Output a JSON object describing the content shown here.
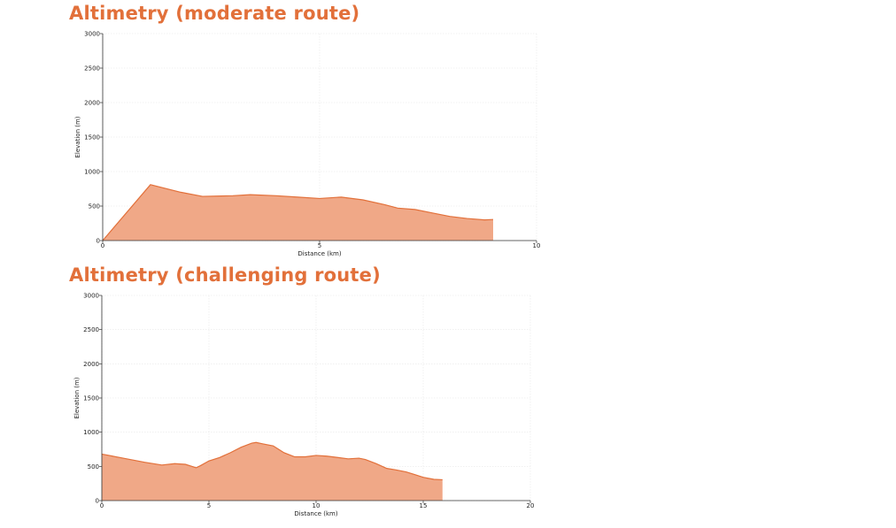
{
  "charts": [
    {
      "title": "Altimetry (moderate route)",
      "chart_data": {
        "type": "area",
        "title": "Altimetry (moderate route)",
        "xlabel": "Distance (km)",
        "ylabel": "Elevation (m)",
        "xlim": [
          0,
          10
        ],
        "ylim": [
          0,
          3000
        ],
        "xticks": [
          0,
          5,
          10
        ],
        "yticks": [
          0,
          500,
          1000,
          1500,
          2000,
          2500,
          3000
        ],
        "grid": true,
        "color": "#f0a887",
        "line_color": "#e2703a",
        "x": [
          0,
          1.1,
          1.8,
          2.3,
          3.0,
          3.4,
          4.0,
          4.5,
          5.0,
          5.5,
          6.0,
          6.5,
          6.8,
          7.2,
          7.6,
          8.0,
          8.4,
          8.8,
          9.0
        ],
        "y": [
          0,
          810,
          700,
          640,
          650,
          665,
          650,
          630,
          610,
          630,
          590,
          520,
          470,
          450,
          400,
          350,
          320,
          300,
          305
        ]
      }
    },
    {
      "title": "Altimetry (challenging route)",
      "chart_data": {
        "type": "area",
        "title": "Altimetry (challenging route)",
        "xlabel": "Distance (km)",
        "ylabel": "Elevation (m)",
        "xlim": [
          0,
          20
        ],
        "ylim": [
          0,
          3000
        ],
        "xticks": [
          0,
          5,
          10,
          15,
          20
        ],
        "yticks": [
          0,
          500,
          1000,
          1500,
          2000,
          2500,
          3000
        ],
        "grid": true,
        "color": "#f0a887",
        "line_color": "#e2703a",
        "x": [
          0,
          1,
          2,
          2.8,
          3.4,
          3.9,
          4.2,
          4.4,
          4.6,
          5.0,
          5.5,
          6.0,
          6.5,
          7.0,
          7.2,
          7.5,
          8.0,
          8.5,
          9.0,
          9.5,
          10.0,
          10.5,
          11.0,
          11.5,
          12.0,
          12.3,
          12.8,
          13.3,
          13.7,
          14.2,
          14.6,
          15.0,
          15.5,
          15.9
        ],
        "y": [
          680,
          620,
          560,
          520,
          540,
          530,
          500,
          480,
          510,
          580,
          630,
          700,
          780,
          840,
          850,
          830,
          800,
          700,
          640,
          640,
          660,
          650,
          630,
          610,
          620,
          600,
          540,
          470,
          450,
          420,
          380,
          340,
          310,
          305
        ]
      }
    }
  ]
}
